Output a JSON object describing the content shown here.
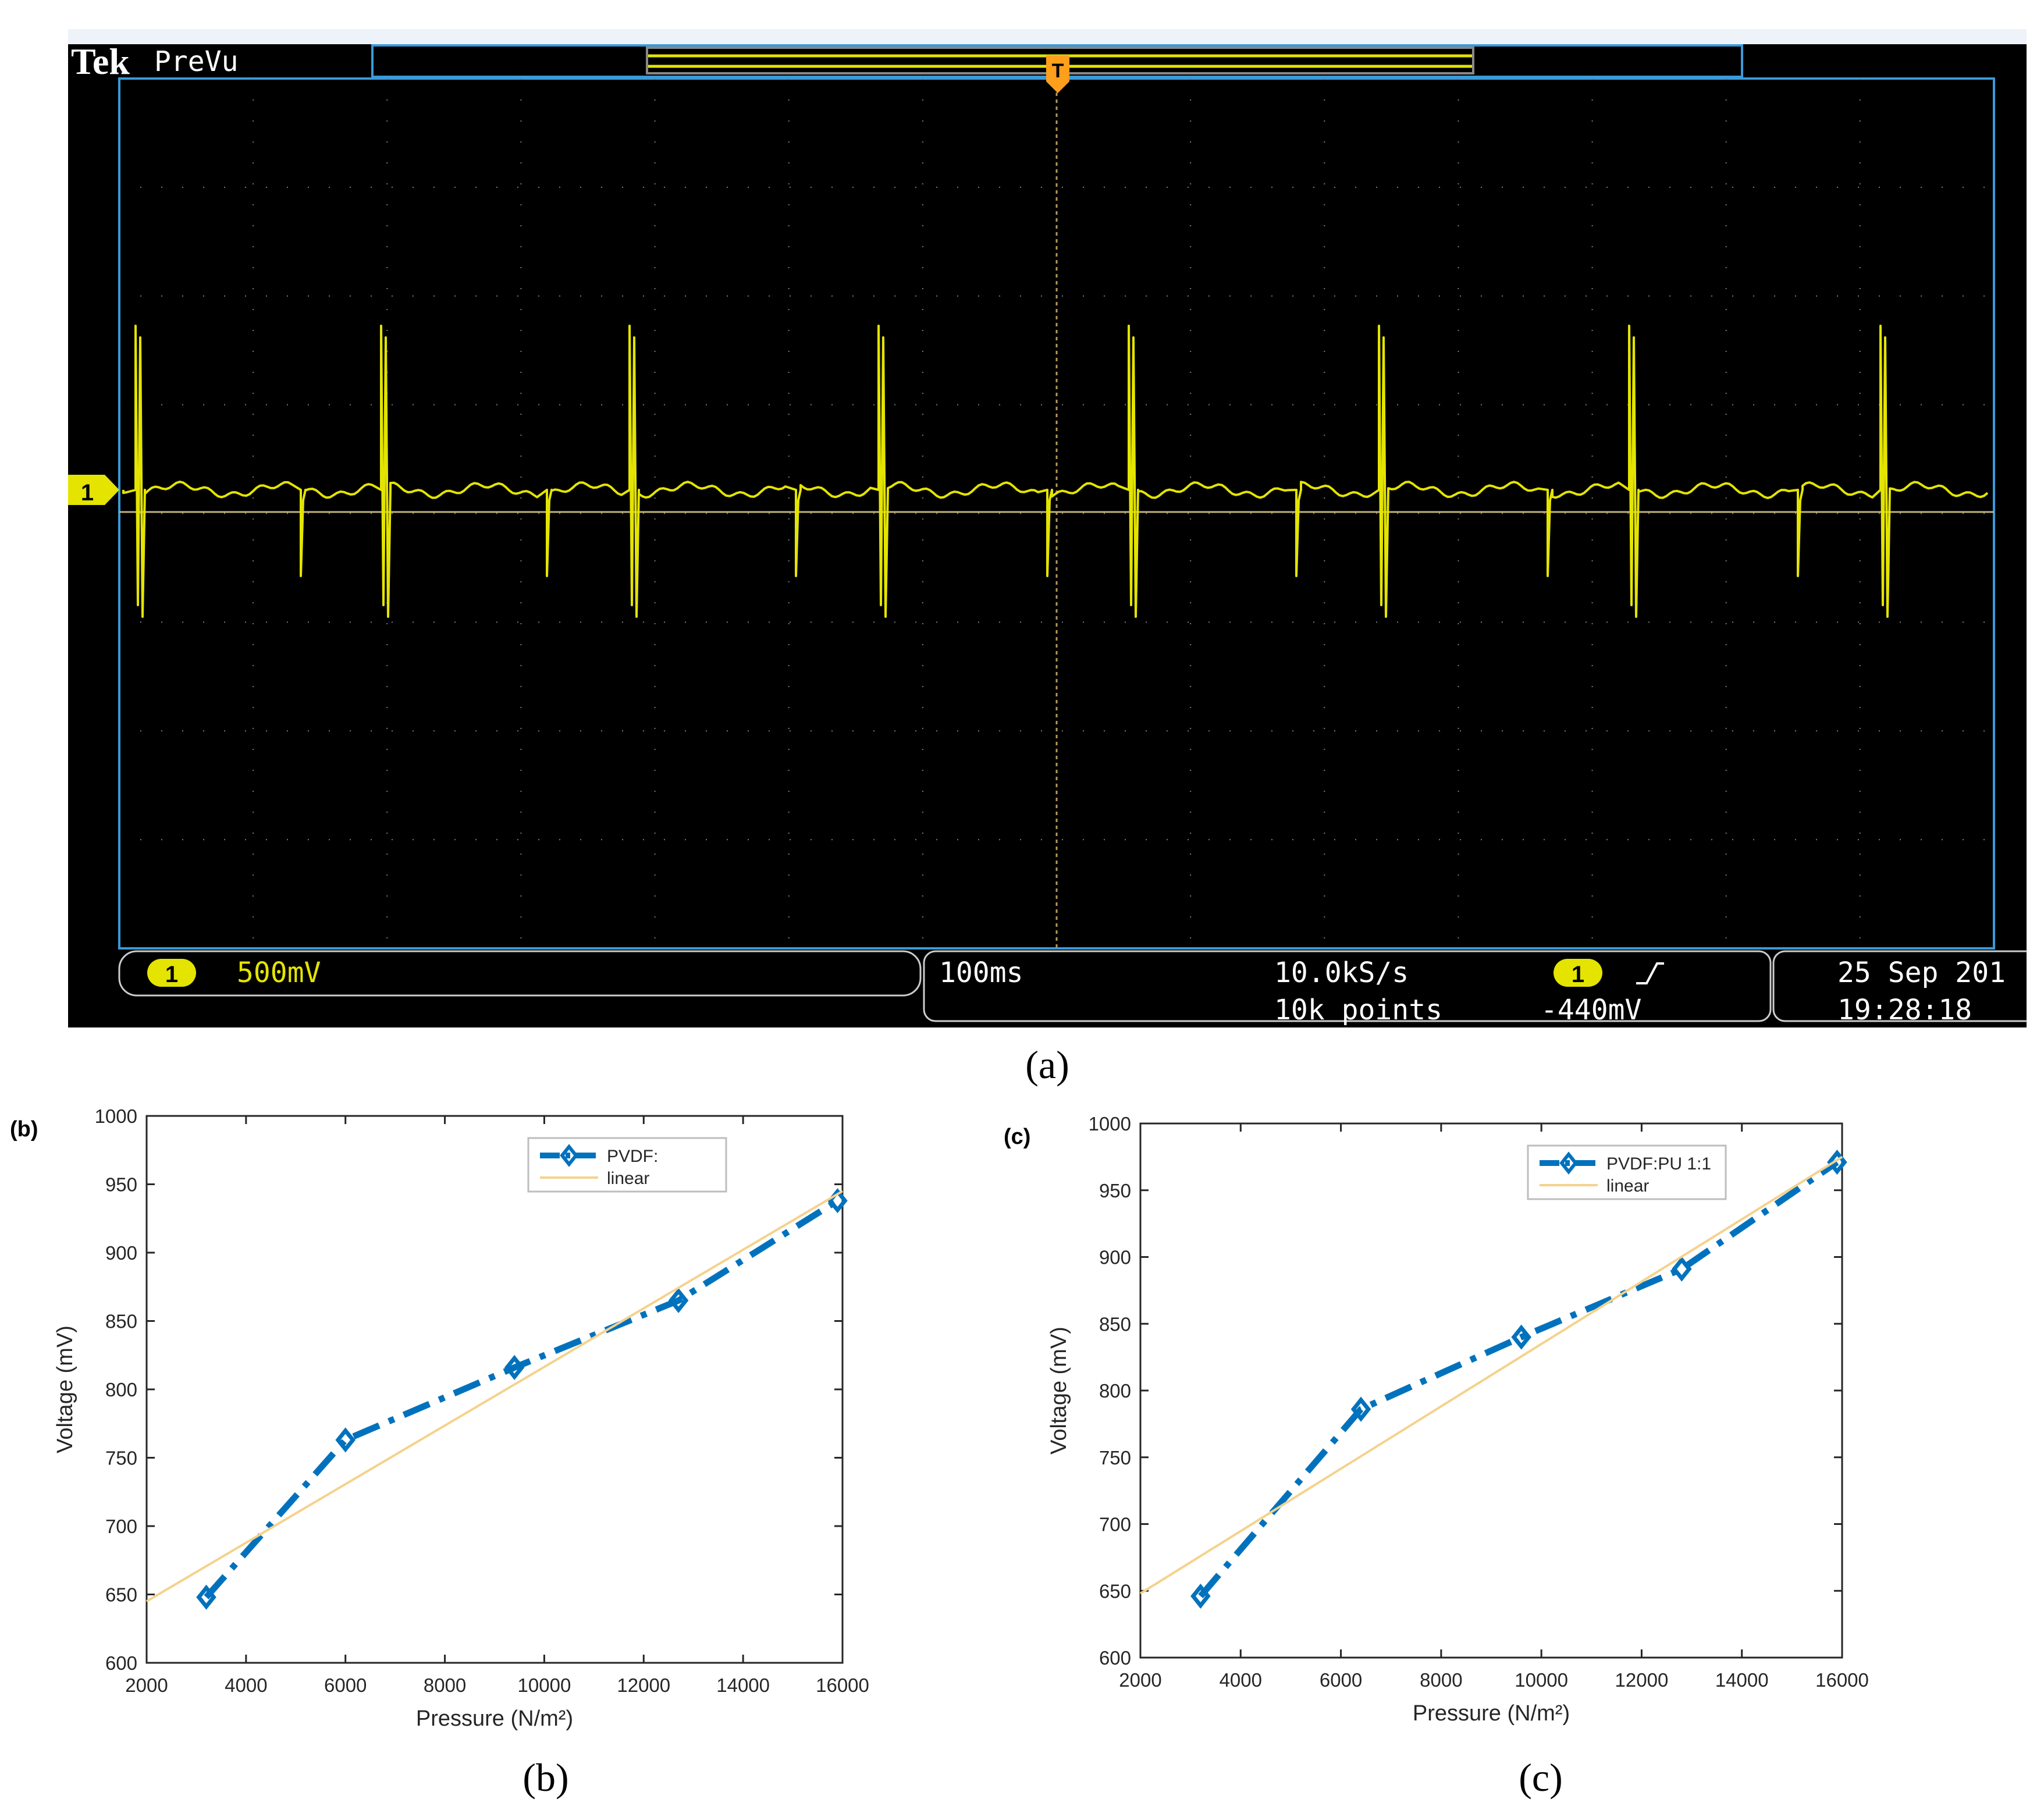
{
  "scope": {
    "brand": "Tek",
    "mode": "PreVu",
    "channel": "1",
    "trigger_marker": "T",
    "volts_per_div": "500mV",
    "time_per_div": "100ms",
    "sample_rate": "10.0kS/s",
    "record_length": "10k points",
    "trigger_channel": "1",
    "trigger_slope_icon": "rising-edge-icon",
    "trigger_level": "-440mV",
    "date": "25 Sep 201",
    "time": "19:28:18",
    "trace_color": "#e4e400",
    "frame_color": "#3a9ad9",
    "screen_color": "#000000"
  },
  "captions": {
    "a": "(a)",
    "b": "(b)",
    "c": "(c)"
  },
  "chart_data": [
    {
      "panel_label": "(b)",
      "type": "line",
      "xlabel": "Pressure (N/m²)",
      "ylabel": "Voltage (mV)",
      "xlim": [
        2000,
        16000
      ],
      "ylim": [
        600,
        1000
      ],
      "xticks": [
        "2000",
        "4000",
        "6000",
        "8000",
        "10000",
        "12000",
        "14000",
        "16000"
      ],
      "yticks": [
        "600",
        "650",
        "700",
        "750",
        "800",
        "850",
        "900",
        "950",
        "1000"
      ],
      "legend_position": "top-right",
      "series": [
        {
          "name": "PVDF:",
          "style": "dash-dot-diamond",
          "color": "#0072bd",
          "x": [
            3200,
            6000,
            9400,
            12700,
            15900
          ],
          "y": [
            648,
            763,
            816,
            865,
            938
          ]
        },
        {
          "name": "linear",
          "style": "solid-thin",
          "color": "#f5d28c",
          "x": [
            2000,
            16000
          ],
          "y": [
            645,
            945
          ]
        }
      ]
    },
    {
      "panel_label": "(c)",
      "type": "line",
      "xlabel": "Pressure (N/m²)",
      "ylabel": "Voltage (mV)",
      "xlim": [
        2000,
        16000
      ],
      "ylim": [
        600,
        1000
      ],
      "xticks": [
        "2000",
        "4000",
        "6000",
        "8000",
        "10000",
        "12000",
        "14000",
        "16000"
      ],
      "yticks": [
        "600",
        "650",
        "700",
        "750",
        "800",
        "850",
        "900",
        "950",
        "1000"
      ],
      "legend_position": "top-right",
      "series": [
        {
          "name": "PVDF:PU 1:1",
          "style": "dash-dot-diamond",
          "color": "#0072bd",
          "x": [
            3200,
            6400,
            9600,
            12800,
            15900
          ],
          "y": [
            646,
            786,
            840,
            891,
            971
          ]
        },
        {
          "name": "linear",
          "style": "solid-thin",
          "color": "#f5d28c",
          "x": [
            2000,
            16000
          ],
          "y": [
            648,
            975
          ]
        }
      ]
    }
  ]
}
